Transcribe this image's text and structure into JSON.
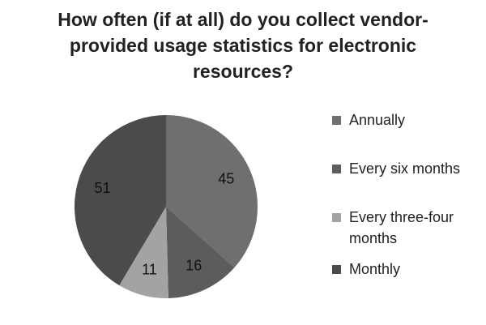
{
  "chart_data": {
    "type": "pie",
    "title": "How often (if at all) do you collect vendor-provided usage statistics for electronic resources?",
    "categories": [
      "Annually",
      "Every six months",
      "Every three-four months",
      "Monthly"
    ],
    "values": [
      45,
      16,
      11,
      51
    ],
    "colors": [
      "#6f6f6f",
      "#5c5c5c",
      "#a3a3a3",
      "#4b4b4b"
    ],
    "legend": "right"
  }
}
